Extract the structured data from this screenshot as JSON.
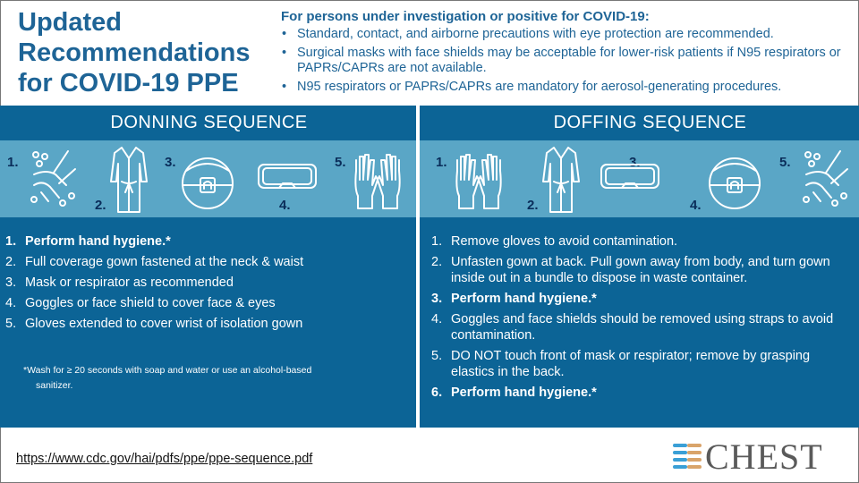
{
  "title": [
    "Updated",
    "Recommendations",
    "for COVID-19 PPE"
  ],
  "intro": {
    "heading": "For persons under investigation or positive for COVID-19:",
    "bullets": [
      "Standard, contact, and airborne precautions with eye protection are recommended.",
      "Surgical masks with face shields may be acceptable for lower-risk patients if N95 respirators or PAPRs/CAPRs are not available.",
      "N95 respirators or PAPRs/CAPRs are mandatory for aerosol-generating procedures."
    ]
  },
  "donning": {
    "heading": "DONNING  SEQUENCE",
    "icon_numbers": [
      "1.",
      "2.",
      "3.",
      "4.",
      "5."
    ],
    "icons": [
      "hand-washing-icon",
      "gown-icon",
      "respirator-icon",
      "goggles-icon",
      "gloves-icon"
    ],
    "steps": [
      {
        "n": "1.",
        "text": "Perform hand hygiene.*",
        "bold": true
      },
      {
        "n": "2.",
        "text": "Full coverage gown fastened at the neck & waist"
      },
      {
        "n": "3.",
        "text": "Mask or respirator as recommended"
      },
      {
        "n": "4.",
        "text": "Goggles or face shield to cover face & eyes"
      },
      {
        "n": "5.",
        "text": "Gloves extended to cover wrist of isolation gown"
      }
    ],
    "note_line1": "*Wash for ≥ 20 seconds with soap and water or use an alcohol-based",
    "note_line2": "sanitizer."
  },
  "doffing": {
    "heading": "DOFFING  SEQUENCE",
    "icon_numbers": [
      "1.",
      "2.",
      "3.",
      "4.",
      "5."
    ],
    "icons": [
      "gloves-icon",
      "gown-icon",
      "goggles-icon",
      "respirator-icon",
      "hand-washing-icon"
    ],
    "steps": [
      {
        "n": "1.",
        "text": "Remove gloves to avoid contamination."
      },
      {
        "n": "2.",
        "text": "Unfasten gown at back. Pull gown away from body, and turn gown inside out in a bundle to dispose in waste container."
      },
      {
        "n": "3.",
        "text": "Perform hand hygiene.*",
        "bold": true
      },
      {
        "n": "4.",
        "text": "Goggles and face shields should be removed using straps to avoid contamination."
      },
      {
        "n": "5.",
        "text": "DO NOT touch front of mask or respirator; remove by grasping elastics in the back."
      },
      {
        "n": "6.",
        "text": "Perform hand hygiene.*",
        "bold": true
      }
    ]
  },
  "footer": {
    "url": "https://www.cdc.gov/hai/pdfs/ppe/ppe-sequence.pdf",
    "logo": "CHEST"
  },
  "colors": {
    "dark_blue": "#0c6496",
    "light_blue": "#5aa6c6",
    "title": "#1e6496",
    "number": "#0a2d5a"
  }
}
